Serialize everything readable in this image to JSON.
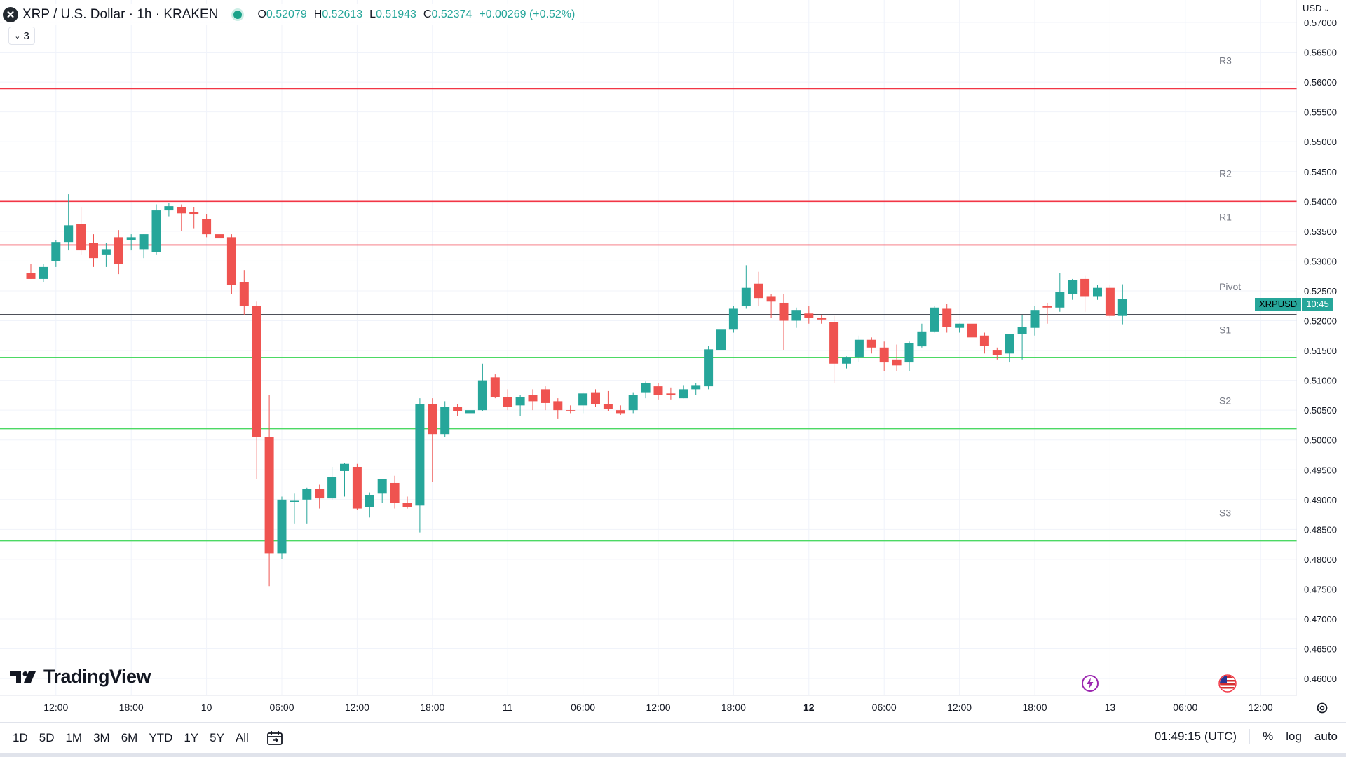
{
  "header": {
    "symbol_icon": "xrp-logo-icon",
    "title": "XRP / U.S. Dollar · 1h · KRAKEN",
    "open_label": "O",
    "open": "0.52079",
    "high_label": "H",
    "high": "0.52613",
    "low_label": "L",
    "low": "0.51943",
    "close_label": "C",
    "close": "0.52374",
    "change": "+0.00269 (+0.52%)",
    "indicators_count": "3"
  },
  "currency": "USD",
  "logo_text": "TradingView",
  "price_label": {
    "symbol": "XRPUSD",
    "countdown": "10:45"
  },
  "bottom": {
    "ranges": [
      "1D",
      "5D",
      "1M",
      "3M",
      "6M",
      "YTD",
      "1Y",
      "5Y",
      "All"
    ],
    "time": "01:49:15 (UTC)",
    "pct": "%",
    "log": "log",
    "auto": "auto"
  },
  "colors": {
    "up": "#26a69a",
    "down": "#ef5350",
    "resistance": "#f23645",
    "support": "#4cd964",
    "pivot": "#131722"
  },
  "chart_data": {
    "type": "candlestick",
    "title": "XRP / U.S. Dollar · 1h · KRAKEN",
    "ylim": [
      0.4575,
      0.5717
    ],
    "y_ticks": [
      "0.57000",
      "0.56500",
      "0.56000",
      "0.55500",
      "0.55000",
      "0.54500",
      "0.54000",
      "0.53500",
      "0.53000",
      "0.52500",
      "0.52000",
      "0.51500",
      "0.51000",
      "0.50500",
      "0.50000",
      "0.49500",
      "0.49000",
      "0.48500",
      "0.48000",
      "0.47500",
      "0.47000",
      "0.46500",
      "0.46000"
    ],
    "x_ticks": [
      {
        "i": 2,
        "label": "12:00",
        "bold": false
      },
      {
        "i": 8,
        "label": "18:00",
        "bold": false
      },
      {
        "i": 14,
        "label": "10",
        "bold": false
      },
      {
        "i": 20,
        "label": "06:00",
        "bold": false
      },
      {
        "i": 26,
        "label": "12:00",
        "bold": false
      },
      {
        "i": 32,
        "label": "18:00",
        "bold": false
      },
      {
        "i": 38,
        "label": "11",
        "bold": false
      },
      {
        "i": 44,
        "label": "06:00",
        "bold": false
      },
      {
        "i": 50,
        "label": "12:00",
        "bold": false
      },
      {
        "i": 56,
        "label": "18:00",
        "bold": false
      },
      {
        "i": 62,
        "label": "12",
        "bold": true
      },
      {
        "i": 68,
        "label": "06:00",
        "bold": false
      },
      {
        "i": 74,
        "label": "12:00",
        "bold": false
      },
      {
        "i": 80,
        "label": "18:00",
        "bold": false
      },
      {
        "i": 86,
        "label": "13",
        "bold": false
      },
      {
        "i": 92,
        "label": "06:00",
        "bold": false
      },
      {
        "i": 98,
        "label": "12:00",
        "bold": false
      }
    ],
    "levels": [
      {
        "name": "R3",
        "value": 0.5589,
        "kind": "resistance"
      },
      {
        "name": "R2",
        "value": 0.54,
        "kind": "resistance"
      },
      {
        "name": "R1",
        "value": 0.5327,
        "kind": "resistance"
      },
      {
        "name": "Pivot",
        "value": 0.521,
        "kind": "pivot"
      },
      {
        "name": "S1",
        "value": 0.5138,
        "kind": "support"
      },
      {
        "name": "S2",
        "value": 0.5019,
        "kind": "support"
      },
      {
        "name": "S3",
        "value": 0.4831,
        "kind": "support"
      }
    ],
    "candles": [
      {
        "o": 0.528,
        "h": 0.5295,
        "l": 0.527,
        "c": 0.527
      },
      {
        "o": 0.527,
        "h": 0.5295,
        "l": 0.5265,
        "c": 0.529
      },
      {
        "o": 0.53,
        "h": 0.5335,
        "l": 0.529,
        "c": 0.5332
      },
      {
        "o": 0.5332,
        "h": 0.5412,
        "l": 0.5318,
        "c": 0.536
      },
      {
        "o": 0.5362,
        "h": 0.539,
        "l": 0.531,
        "c": 0.5318
      },
      {
        "o": 0.533,
        "h": 0.5345,
        "l": 0.529,
        "c": 0.5305
      },
      {
        "o": 0.531,
        "h": 0.533,
        "l": 0.529,
        "c": 0.532
      },
      {
        "o": 0.534,
        "h": 0.5352,
        "l": 0.5278,
        "c": 0.5295
      },
      {
        "o": 0.5335,
        "h": 0.5345,
        "l": 0.5318,
        "c": 0.534
      },
      {
        "o": 0.532,
        "h": 0.5345,
        "l": 0.5305,
        "c": 0.5345
      },
      {
        "o": 0.5315,
        "h": 0.5395,
        "l": 0.531,
        "c": 0.5385
      },
      {
        "o": 0.5385,
        "h": 0.5398,
        "l": 0.5375,
        "c": 0.5392
      },
      {
        "o": 0.539,
        "h": 0.5395,
        "l": 0.535,
        "c": 0.538
      },
      {
        "o": 0.5382,
        "h": 0.539,
        "l": 0.5355,
        "c": 0.5378
      },
      {
        "o": 0.537,
        "h": 0.5378,
        "l": 0.534,
        "c": 0.5345
      },
      {
        "o": 0.5345,
        "h": 0.5388,
        "l": 0.531,
        "c": 0.5338
      },
      {
        "o": 0.534,
        "h": 0.5345,
        "l": 0.5245,
        "c": 0.526
      },
      {
        "o": 0.5265,
        "h": 0.5285,
        "l": 0.521,
        "c": 0.5225
      },
      {
        "o": 0.5225,
        "h": 0.5232,
        "l": 0.4935,
        "c": 0.5005
      },
      {
        "o": 0.5005,
        "h": 0.5075,
        "l": 0.4755,
        "c": 0.481
      },
      {
        "o": 0.481,
        "h": 0.4905,
        "l": 0.48,
        "c": 0.49
      },
      {
        "o": 0.4898,
        "h": 0.491,
        "l": 0.486,
        "c": 0.4898
      },
      {
        "o": 0.49,
        "h": 0.492,
        "l": 0.486,
        "c": 0.4918
      },
      {
        "o": 0.4918,
        "h": 0.4925,
        "l": 0.4885,
        "c": 0.4902
      },
      {
        "o": 0.4902,
        "h": 0.4955,
        "l": 0.49,
        "c": 0.4938
      },
      {
        "o": 0.4948,
        "h": 0.4962,
        "l": 0.4905,
        "c": 0.496
      },
      {
        "o": 0.4955,
        "h": 0.496,
        "l": 0.4883,
        "c": 0.4885
      },
      {
        "o": 0.4887,
        "h": 0.4912,
        "l": 0.487,
        "c": 0.4908
      },
      {
        "o": 0.491,
        "h": 0.4935,
        "l": 0.4895,
        "c": 0.4935
      },
      {
        "o": 0.4928,
        "h": 0.494,
        "l": 0.4885,
        "c": 0.4895
      },
      {
        "o": 0.4895,
        "h": 0.4905,
        "l": 0.4885,
        "c": 0.4888
      },
      {
        "o": 0.489,
        "h": 0.507,
        "l": 0.4845,
        "c": 0.506
      },
      {
        "o": 0.506,
        "h": 0.507,
        "l": 0.493,
        "c": 0.501
      },
      {
        "o": 0.501,
        "h": 0.5065,
        "l": 0.5005,
        "c": 0.5055
      },
      {
        "o": 0.5055,
        "h": 0.506,
        "l": 0.504,
        "c": 0.5048
      },
      {
        "o": 0.5045,
        "h": 0.5058,
        "l": 0.502,
        "c": 0.505
      },
      {
        "o": 0.505,
        "h": 0.5128,
        "l": 0.5048,
        "c": 0.51
      },
      {
        "o": 0.5105,
        "h": 0.511,
        "l": 0.507,
        "c": 0.5072
      },
      {
        "o": 0.5072,
        "h": 0.5085,
        "l": 0.505,
        "c": 0.5055
      },
      {
        "o": 0.5058,
        "h": 0.5075,
        "l": 0.504,
        "c": 0.5072
      },
      {
        "o": 0.5075,
        "h": 0.5085,
        "l": 0.505,
        "c": 0.5065
      },
      {
        "o": 0.5085,
        "h": 0.509,
        "l": 0.505,
        "c": 0.5062
      },
      {
        "o": 0.5065,
        "h": 0.507,
        "l": 0.5035,
        "c": 0.505
      },
      {
        "o": 0.505,
        "h": 0.5058,
        "l": 0.5045,
        "c": 0.5048
      },
      {
        "o": 0.5058,
        "h": 0.508,
        "l": 0.5045,
        "c": 0.5078
      },
      {
        "o": 0.508,
        "h": 0.5085,
        "l": 0.5055,
        "c": 0.506
      },
      {
        "o": 0.506,
        "h": 0.5082,
        "l": 0.5048,
        "c": 0.5052
      },
      {
        "o": 0.505,
        "h": 0.5058,
        "l": 0.5042,
        "c": 0.5045
      },
      {
        "o": 0.505,
        "h": 0.508,
        "l": 0.5045,
        "c": 0.5075
      },
      {
        "o": 0.508,
        "h": 0.5098,
        "l": 0.507,
        "c": 0.5095
      },
      {
        "o": 0.509,
        "h": 0.5095,
        "l": 0.5068,
        "c": 0.5075
      },
      {
        "o": 0.5078,
        "h": 0.5088,
        "l": 0.5068,
        "c": 0.5075
      },
      {
        "o": 0.507,
        "h": 0.5092,
        "l": 0.507,
        "c": 0.5085
      },
      {
        "o": 0.5085,
        "h": 0.5095,
        "l": 0.5075,
        "c": 0.5092
      },
      {
        "o": 0.509,
        "h": 0.5158,
        "l": 0.5085,
        "c": 0.5152
      },
      {
        "o": 0.515,
        "h": 0.5195,
        "l": 0.514,
        "c": 0.5185
      },
      {
        "o": 0.5185,
        "h": 0.5225,
        "l": 0.518,
        "c": 0.522
      },
      {
        "o": 0.5225,
        "h": 0.5293,
        "l": 0.522,
        "c": 0.5255
      },
      {
        "o": 0.5262,
        "h": 0.5282,
        "l": 0.5225,
        "c": 0.5238
      },
      {
        "o": 0.524,
        "h": 0.5245,
        "l": 0.5205,
        "c": 0.5232
      },
      {
        "o": 0.523,
        "h": 0.5245,
        "l": 0.515,
        "c": 0.52
      },
      {
        "o": 0.52,
        "h": 0.5222,
        "l": 0.5188,
        "c": 0.5218
      },
      {
        "o": 0.5212,
        "h": 0.5225,
        "l": 0.5195,
        "c": 0.5205
      },
      {
        "o": 0.5205,
        "h": 0.521,
        "l": 0.5195,
        "c": 0.5202
      },
      {
        "o": 0.5198,
        "h": 0.5208,
        "l": 0.5095,
        "c": 0.5128
      },
      {
        "o": 0.5128,
        "h": 0.514,
        "l": 0.512,
        "c": 0.5138
      },
      {
        "o": 0.5138,
        "h": 0.5175,
        "l": 0.513,
        "c": 0.5168
      },
      {
        "o": 0.5168,
        "h": 0.5172,
        "l": 0.5145,
        "c": 0.5155
      },
      {
        "o": 0.5155,
        "h": 0.5165,
        "l": 0.5115,
        "c": 0.513
      },
      {
        "o": 0.5135,
        "h": 0.516,
        "l": 0.5115,
        "c": 0.5125
      },
      {
        "o": 0.513,
        "h": 0.5165,
        "l": 0.5115,
        "c": 0.5162
      },
      {
        "o": 0.5157,
        "h": 0.5195,
        "l": 0.5155,
        "c": 0.5182
      },
      {
        "o": 0.5182,
        "h": 0.5225,
        "l": 0.518,
        "c": 0.5222
      },
      {
        "o": 0.522,
        "h": 0.5228,
        "l": 0.518,
        "c": 0.519
      },
      {
        "o": 0.5188,
        "h": 0.5195,
        "l": 0.518,
        "c": 0.5195
      },
      {
        "o": 0.5195,
        "h": 0.52,
        "l": 0.5165,
        "c": 0.5172
      },
      {
        "o": 0.5175,
        "h": 0.518,
        "l": 0.5145,
        "c": 0.5158
      },
      {
        "o": 0.515,
        "h": 0.5155,
        "l": 0.5135,
        "c": 0.5142
      },
      {
        "o": 0.5145,
        "h": 0.5178,
        "l": 0.513,
        "c": 0.5178
      },
      {
        "o": 0.5178,
        "h": 0.521,
        "l": 0.5135,
        "c": 0.519
      },
      {
        "o": 0.5188,
        "h": 0.5225,
        "l": 0.5175,
        "c": 0.5218
      },
      {
        "o": 0.5225,
        "h": 0.523,
        "l": 0.5195,
        "c": 0.5222
      },
      {
        "o": 0.5222,
        "h": 0.528,
        "l": 0.5215,
        "c": 0.5248
      },
      {
        "o": 0.5245,
        "h": 0.527,
        "l": 0.5235,
        "c": 0.5268
      },
      {
        "o": 0.527,
        "h": 0.5275,
        "l": 0.5215,
        "c": 0.524
      },
      {
        "o": 0.524,
        "h": 0.526,
        "l": 0.5235,
        "c": 0.5255
      },
      {
        "o": 0.5255,
        "h": 0.526,
        "l": 0.5205,
        "c": 0.5208
      },
      {
        "o": 0.5208,
        "h": 0.5261,
        "l": 0.5194,
        "c": 0.5237
      }
    ]
  }
}
